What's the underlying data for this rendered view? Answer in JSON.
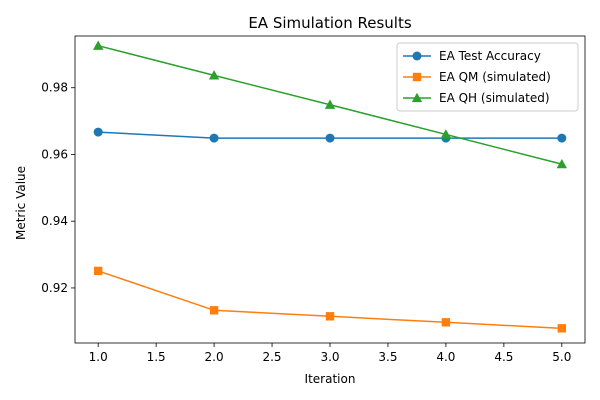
{
  "chart_data": {
    "type": "line",
    "title": "EA Simulation Results",
    "xlabel": "Iteration",
    "ylabel": "Metric Value",
    "x": [
      1.0,
      2.0,
      3.0,
      4.0,
      5.0
    ],
    "xlim": [
      0.8,
      5.2
    ],
    "ylim": [
      0.9035,
      0.9955
    ],
    "xticks": [
      1.0,
      1.5,
      2.0,
      2.5,
      3.0,
      3.5,
      4.0,
      4.5,
      5.0
    ],
    "xtick_labels": [
      "1.0",
      "1.5",
      "2.0",
      "2.5",
      "3.0",
      "3.5",
      "4.0",
      "4.5",
      "5.0"
    ],
    "yticks": [
      0.92,
      0.94,
      0.96,
      0.98
    ],
    "ytick_labels": [
      "0.92",
      "0.94",
      "0.96",
      "0.98"
    ],
    "grid": false,
    "legend_position": "top-right",
    "series": [
      {
        "name": "EA Test Accuracy",
        "color": "#1f77b4",
        "marker": "circle",
        "values": [
          0.9667,
          0.9649,
          0.9649,
          0.9649,
          0.9649
        ]
      },
      {
        "name": "EA QM (simulated)",
        "color": "#ff7f0e",
        "marker": "square",
        "values": [
          0.9251,
          0.9133,
          0.9115,
          0.9097,
          0.9079
        ]
      },
      {
        "name": "EA QH (simulated)",
        "color": "#2ca02c",
        "marker": "triangle-up",
        "values": [
          0.9926,
          0.9837,
          0.9749,
          0.966,
          0.9571
        ]
      }
    ]
  }
}
